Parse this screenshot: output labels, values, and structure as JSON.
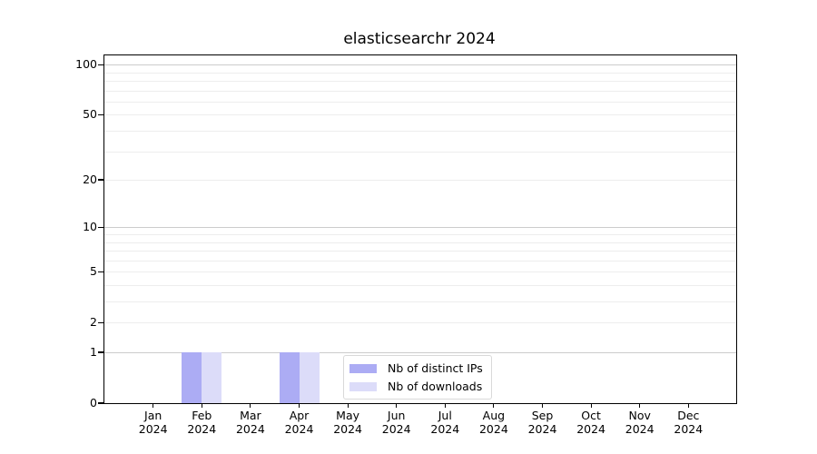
{
  "chart_data": {
    "type": "bar",
    "title": "elasticsearchr 2024",
    "categories": [
      {
        "month": "Jan",
        "year": "2024"
      },
      {
        "month": "Feb",
        "year": "2024"
      },
      {
        "month": "Mar",
        "year": "2024"
      },
      {
        "month": "Apr",
        "year": "2024"
      },
      {
        "month": "May",
        "year": "2024"
      },
      {
        "month": "Jun",
        "year": "2024"
      },
      {
        "month": "Jul",
        "year": "2024"
      },
      {
        "month": "Aug",
        "year": "2024"
      },
      {
        "month": "Sep",
        "year": "2024"
      },
      {
        "month": "Oct",
        "year": "2024"
      },
      {
        "month": "Nov",
        "year": "2024"
      },
      {
        "month": "Dec",
        "year": "2024"
      }
    ],
    "series": [
      {
        "name": "Nb of distinct IPs",
        "color": "#acacf4",
        "values": [
          0,
          1,
          0,
          1,
          0,
          0,
          0,
          0,
          0,
          0,
          0,
          0
        ]
      },
      {
        "name": "Nb of downloads",
        "color": "#dcdcf9",
        "values": [
          0,
          1,
          0,
          1,
          0,
          0,
          0,
          0,
          0,
          0,
          0,
          0
        ]
      }
    ],
    "yscale": "log1p",
    "ylim": [
      0,
      113.6
    ],
    "y_ticks": [
      100,
      50,
      20,
      10,
      5,
      2,
      1,
      0
    ],
    "y_gridlines_major": [
      1,
      10,
      100
    ],
    "y_gridlines_minor": [
      2,
      3,
      4,
      5,
      6,
      7,
      8,
      9,
      20,
      30,
      40,
      50,
      60,
      70,
      80,
      90
    ],
    "grid": "horizontal-only",
    "legend": {
      "position": "lower-center-inside"
    },
    "colors": {
      "grid_minor": "#ededed",
      "grid_major": "#cccccc",
      "axis": "#000000",
      "legend_border": "#d9d9d9",
      "background": "#ffffff"
    }
  }
}
